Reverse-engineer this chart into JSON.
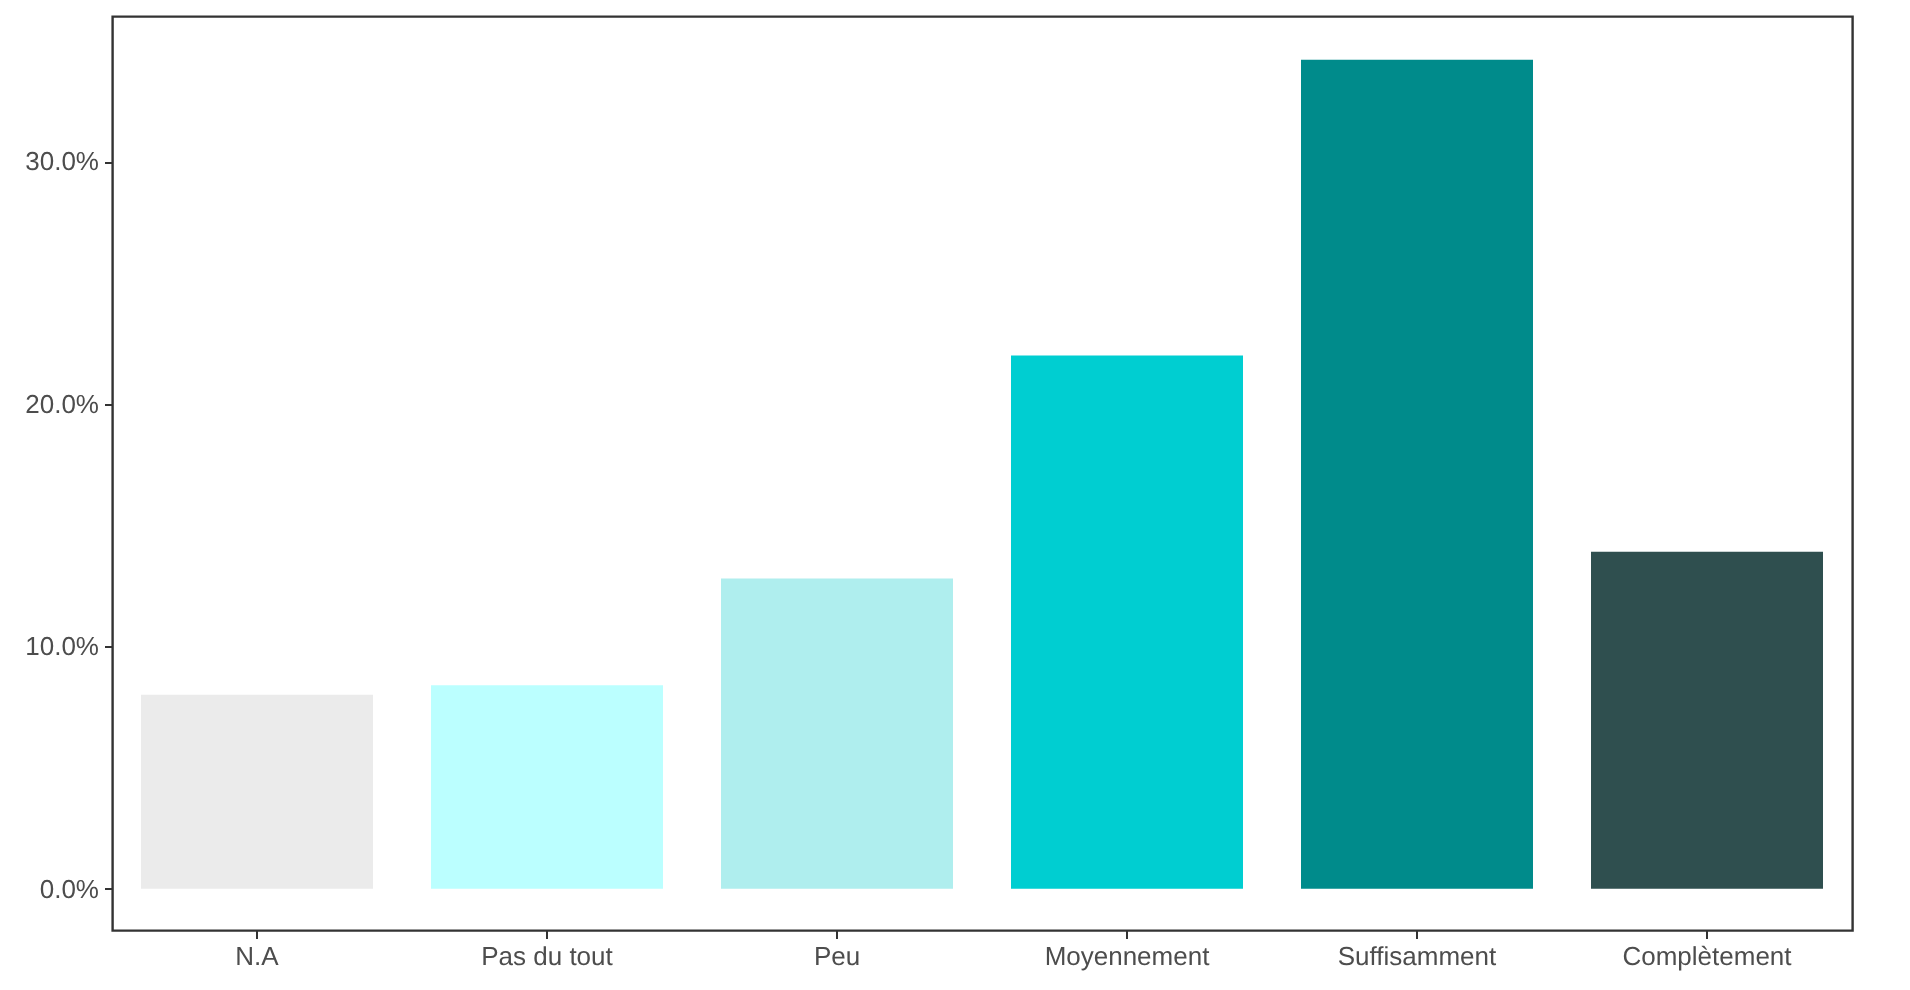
{
  "chart_data": {
    "type": "bar",
    "categories": [
      "N.A",
      "Pas du tout",
      "Peu",
      "Moyennement",
      "Suffisamment",
      "Complètement"
    ],
    "values": [
      8.0,
      8.4,
      12.8,
      22.0,
      34.2,
      13.9
    ],
    "colors": [
      "#ebebeb",
      "#bbffff",
      "#afeeee",
      "#00ced1",
      "#008b8b",
      "#2f4f4f"
    ],
    "ylim": [
      -1.7,
      36.0
    ],
    "yticks": [
      {
        "value": 0,
        "label": "0.0%"
      },
      {
        "value": 10,
        "label": "10.0%"
      },
      {
        "value": 20,
        "label": "20.0%"
      },
      {
        "value": 30,
        "label": "30.0%"
      }
    ],
    "grid": false,
    "legend": false
  }
}
